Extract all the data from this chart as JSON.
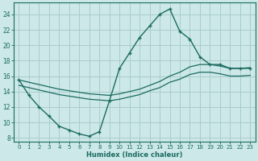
{
  "background_color": "#cce8e8",
  "grid_color": "#aacccc",
  "line_color": "#1a6b60",
  "x_min": -0.5,
  "x_max": 23.5,
  "y_min": 7.5,
  "y_max": 25.5,
  "xlabel": "Humidex (Indice chaleur)",
  "yticks": [
    8,
    10,
    12,
    14,
    16,
    18,
    20,
    22,
    24
  ],
  "xticks": [
    0,
    1,
    2,
    3,
    4,
    5,
    6,
    7,
    8,
    9,
    10,
    11,
    12,
    13,
    14,
    15,
    16,
    17,
    18,
    19,
    20,
    21,
    22,
    23
  ],
  "main_line_x": [
    0,
    1,
    2,
    3,
    4,
    5,
    6,
    7,
    8,
    9,
    10,
    11,
    12,
    13,
    14,
    15,
    16,
    17,
    18,
    19,
    20,
    21,
    22,
    23
  ],
  "main_line_y": [
    15.5,
    13.5,
    12.0,
    10.8,
    9.5,
    9.0,
    8.5,
    8.2,
    8.8,
    12.8,
    17.0,
    19.0,
    21.0,
    22.5,
    24.0,
    24.7,
    21.8,
    20.8,
    18.5,
    17.5,
    17.5,
    17.0,
    17.0,
    17.0
  ],
  "upper_line_x": [
    0,
    1,
    2,
    3,
    4,
    5,
    6,
    7,
    8,
    9,
    10,
    11,
    12,
    13,
    14,
    15,
    16,
    17,
    18,
    19,
    20,
    21,
    22,
    23
  ],
  "upper_line_y": [
    15.5,
    15.2,
    14.9,
    14.6,
    14.3,
    14.1,
    13.9,
    13.7,
    13.6,
    13.5,
    13.7,
    14.0,
    14.3,
    14.8,
    15.3,
    16.0,
    16.5,
    17.2,
    17.5,
    17.5,
    17.3,
    17.0,
    17.0,
    17.1
  ],
  "lower_line_x": [
    0,
    1,
    2,
    3,
    4,
    5,
    6,
    7,
    8,
    9,
    10,
    11,
    12,
    13,
    14,
    15,
    16,
    17,
    18,
    19,
    20,
    21,
    22,
    23
  ],
  "lower_line_y": [
    14.8,
    14.5,
    14.2,
    13.9,
    13.6,
    13.4,
    13.2,
    13.0,
    12.9,
    12.8,
    13.0,
    13.3,
    13.6,
    14.1,
    14.5,
    15.2,
    15.6,
    16.2,
    16.5,
    16.5,
    16.3,
    16.0,
    16.0,
    16.1
  ]
}
